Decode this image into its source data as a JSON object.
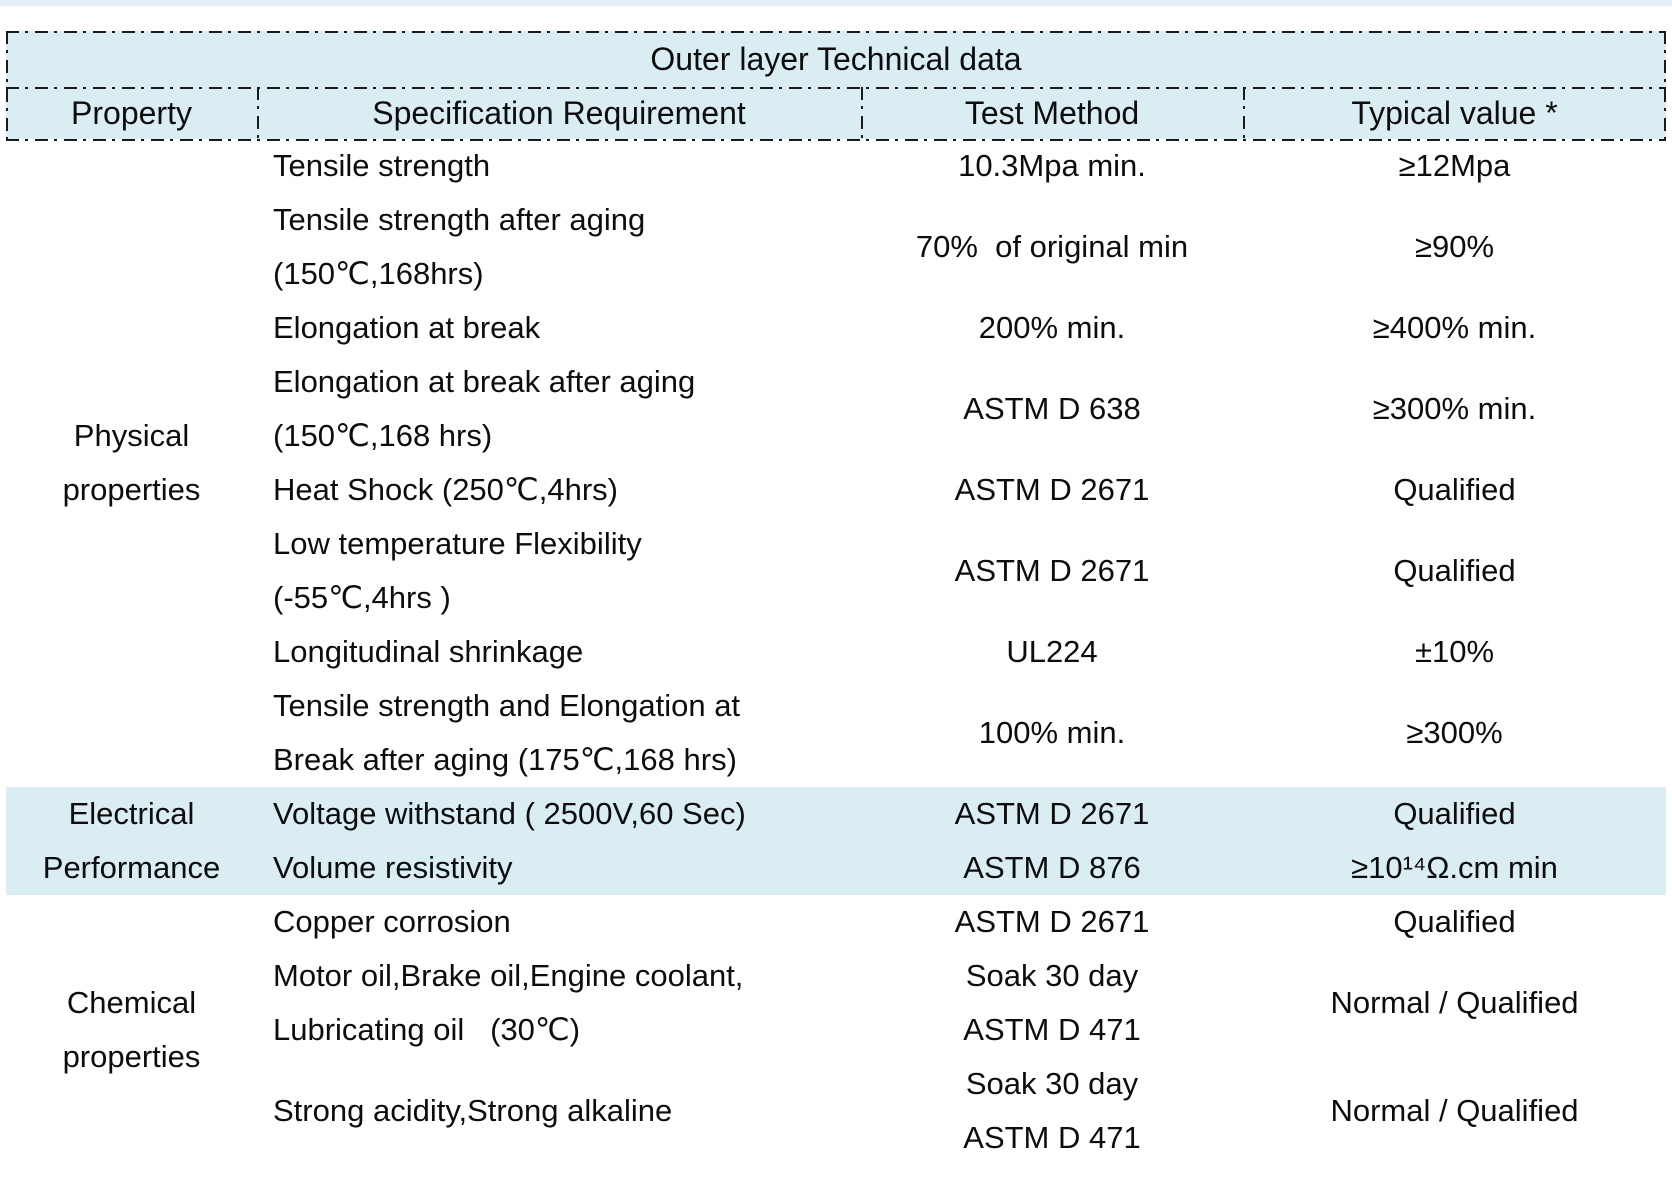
{
  "colors": {
    "accent": "#d9edf3",
    "top_strip": "#e3f1f6",
    "border": "#1a1a1a",
    "text": "#0d0d0d"
  },
  "table": {
    "title": "Outer layer Technical data",
    "columns": [
      "Property",
      "Specification Requirement",
      "Test Method",
      "Typical value *"
    ],
    "groups": [
      {
        "property": [
          "Physical",
          "properties"
        ],
        "highlight": false,
        "rows": [
          {
            "spec": [
              "Tensile strength"
            ],
            "test": [
              "10.3Mpa min."
            ],
            "typical": [
              "≥12Mpa"
            ]
          },
          {
            "spec": [
              "Tensile strength after aging",
              "(150℃,168hrs)"
            ],
            "test": [
              "70%  of original min"
            ],
            "typical": [
              "≥90%"
            ]
          },
          {
            "spec": [
              "Elongation at break"
            ],
            "test": [
              "200% min."
            ],
            "typical": [
              "≥400% min."
            ]
          },
          {
            "spec": [
              "Elongation at break after aging",
              "(150℃,168 hrs)"
            ],
            "test": [
              "ASTM D 638"
            ],
            "typical": [
              "≥300% min."
            ]
          },
          {
            "spec": [
              "Heat Shock (250℃,4hrs)"
            ],
            "test": [
              "ASTM D 2671"
            ],
            "typical": [
              "Qualified"
            ]
          },
          {
            "spec": [
              "Low temperature Flexibility",
              "(-55℃,4hrs )"
            ],
            "test": [
              "ASTM D 2671"
            ],
            "typical": [
              "Qualified"
            ]
          },
          {
            "spec": [
              "Longitudinal shrinkage"
            ],
            "test": [
              "UL224"
            ],
            "typical": [
              "±10%"
            ]
          },
          {
            "spec": [
              "Tensile strength and Elongation at",
              "Break after aging (175℃,168 hrs)"
            ],
            "test": [
              "100% min."
            ],
            "typical": [
              "≥300%"
            ]
          }
        ]
      },
      {
        "property": [
          "Electrical",
          "Performance"
        ],
        "highlight": true,
        "rows": [
          {
            "spec": [
              "Voltage withstand ( 2500V,60 Sec)"
            ],
            "test": [
              "ASTM D 2671"
            ],
            "typical": [
              "Qualified"
            ]
          },
          {
            "spec": [
              "Volume resistivity"
            ],
            "test": [
              "ASTM D 876"
            ],
            "typical": [
              "≥10¹⁴Ω.cm min"
            ]
          }
        ]
      },
      {
        "property": [
          "Chemical",
          "properties"
        ],
        "highlight": false,
        "rows": [
          {
            "spec": [
              "Copper corrosion"
            ],
            "test": [
              "ASTM D 2671"
            ],
            "typical": [
              "Qualified"
            ]
          },
          {
            "spec": [
              "Motor oil,Brake oil,Engine coolant,",
              "Lubricating oil   (30℃)"
            ],
            "test": [
              "Soak 30 day",
              "ASTM D 471"
            ],
            "typical": [
              "Normal / Qualified"
            ]
          },
          {
            "spec": [
              "Strong acidity,Strong alkaline"
            ],
            "test": [
              "Soak 30 day",
              "ASTM D 471"
            ],
            "typical": [
              "Normal / Qualified"
            ]
          }
        ]
      }
    ]
  }
}
